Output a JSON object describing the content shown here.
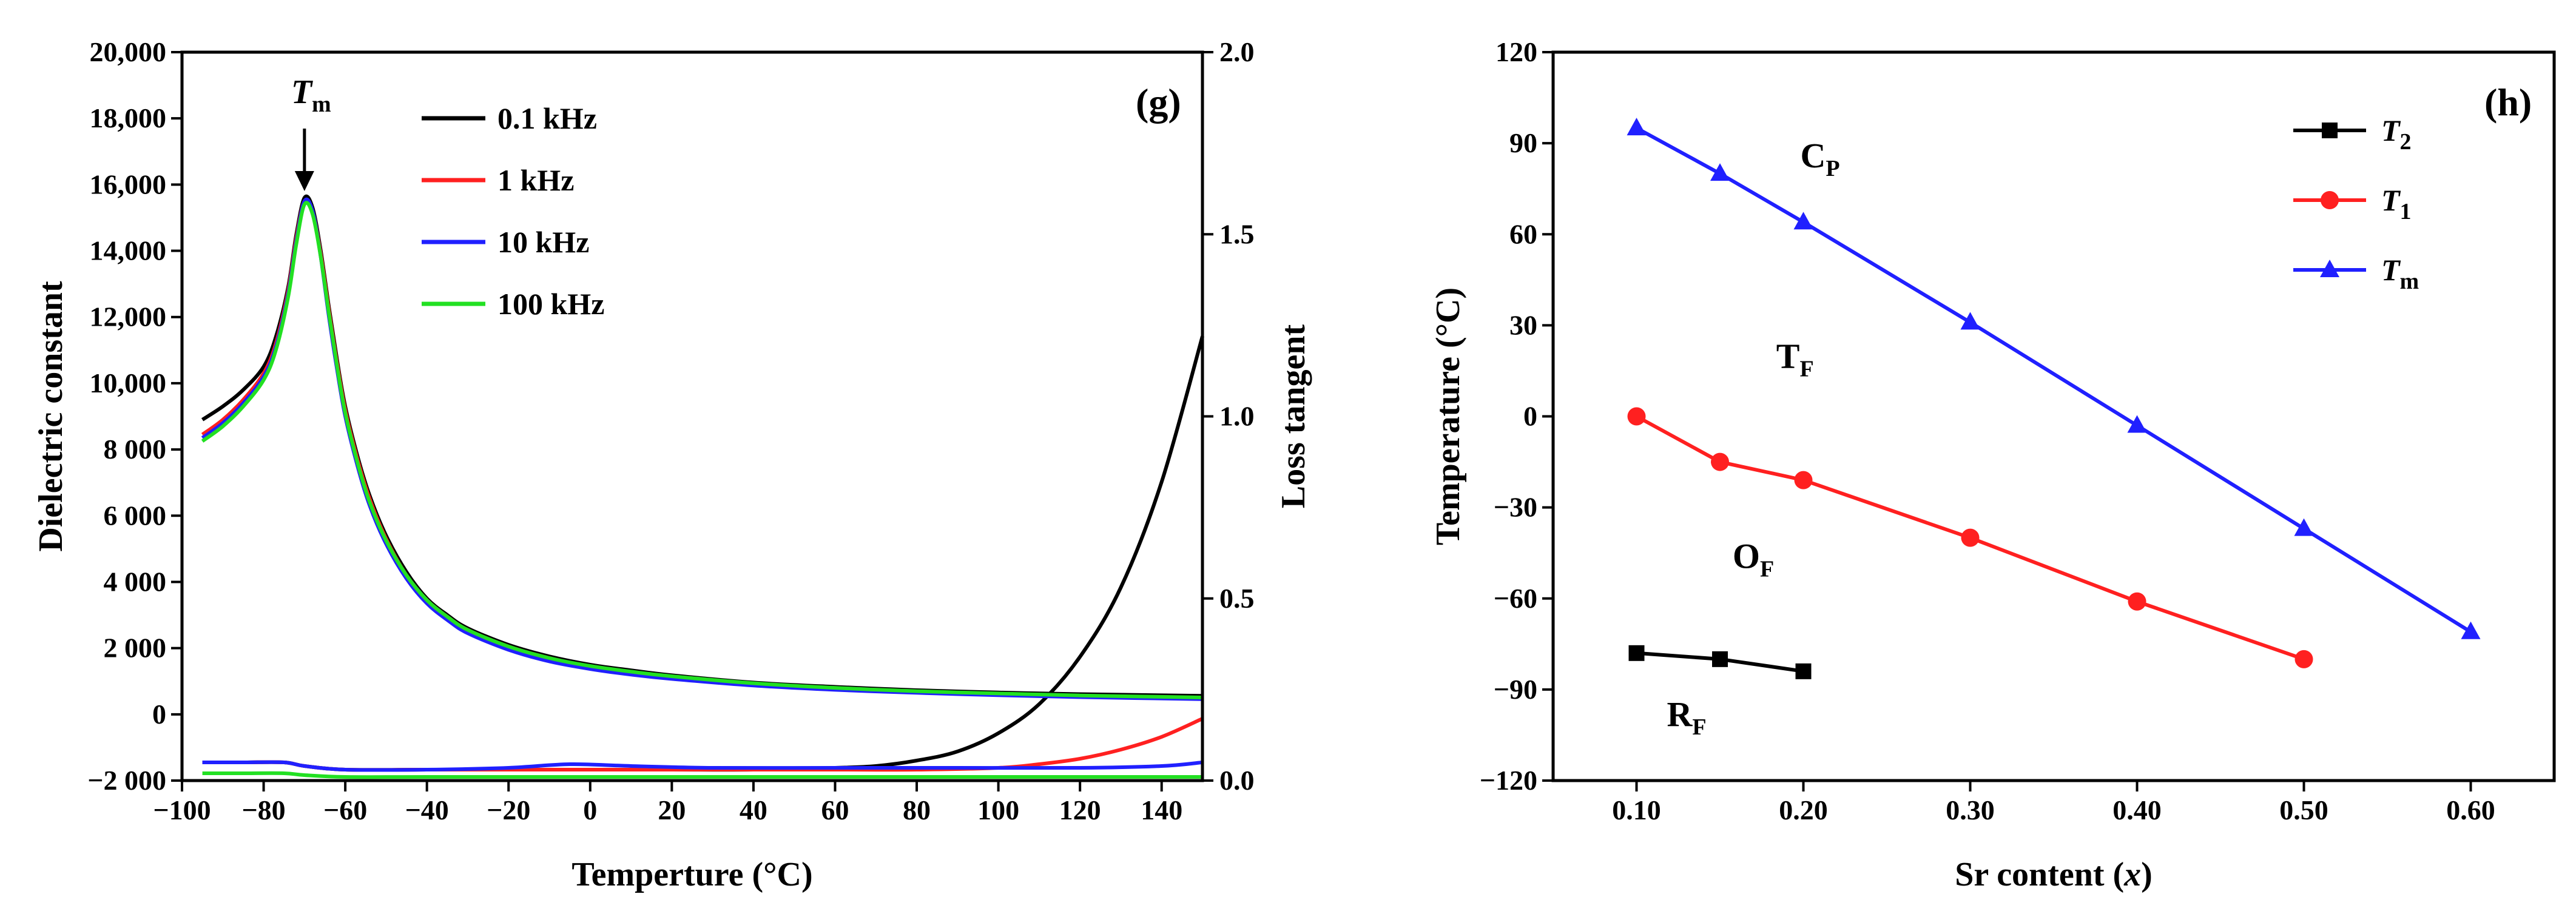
{
  "chart_data": [
    {
      "type": "line",
      "panel_label": "(g)",
      "xlabel": "Temperture (°C)",
      "ylabel": "Dielectric constant",
      "y2label": "Loss tangent",
      "xlim": [
        -100,
        150
      ],
      "ylim": [
        -2000,
        20000
      ],
      "y2lim": [
        0,
        2.0
      ],
      "x_ticks": [
        -100,
        -80,
        -60,
        -40,
        -20,
        0,
        20,
        40,
        60,
        80,
        100,
        120,
        140
      ],
      "x_tick_labels": [
        "−100",
        "−80",
        "−60",
        "−40",
        "−20",
        "0",
        "20",
        "40",
        "60",
        "80",
        "100",
        "120",
        "140"
      ],
      "y_ticks": [
        -2000,
        0,
        2000,
        4000,
        6000,
        8000,
        10000,
        12000,
        14000,
        16000,
        18000,
        20000
      ],
      "y_tick_labels": [
        "−2 000",
        "0",
        "2 000",
        "4 000",
        "6 000",
        "8 000",
        "10,000",
        "12,000",
        "14,000",
        "16,000",
        "18,000",
        "20,000"
      ],
      "y2_ticks": [
        0,
        0.5,
        1.0,
        1.5,
        2.0
      ],
      "y2_tick_labels": [
        "0.0",
        "0.5",
        "1.0",
        "1.5",
        "2.0"
      ],
      "annotation": {
        "text": "T",
        "sub": "m",
        "x": -70,
        "y": 15700
      },
      "legend": {
        "placement": "top-left-inside",
        "entries": [
          "0.1 kHz",
          "1 kHz",
          "10 kHz",
          "100 kHz"
        ]
      },
      "series": [
        {
          "name": "0.1 kHz",
          "color": "#000000",
          "permittivity": {
            "x": [
              -95,
              -90,
              -85,
              -80,
              -77,
              -74,
              -72,
              -70,
              -68,
              -66,
              -64,
              -62,
              -60,
              -57,
              -54,
              -50,
              -45,
              -40,
              -35,
              -30,
              -20,
              -10,
              0,
              10,
              20,
              40,
              60,
              80,
              100,
              120,
              150
            ],
            "y": [
              8900,
              9300,
              9800,
              10500,
              11400,
              12900,
              14500,
              15600,
              15300,
              14000,
              12300,
              10700,
              9300,
              7800,
              6600,
              5400,
              4300,
              3500,
              3000,
              2600,
              2100,
              1750,
              1500,
              1330,
              1180,
              960,
              830,
              730,
              660,
              610,
              560
            ]
          },
          "loss": {
            "x": [
              -95,
              -85,
              -75,
              -70,
              -60,
              -40,
              -20,
              0,
              20,
              40,
              60,
              70,
              80,
              90,
              100,
              110,
              120,
              130,
              140,
              150
            ],
            "y": [
              0.05,
              0.05,
              0.05,
              0.04,
              0.03,
              0.03,
              0.03,
              0.03,
              0.03,
              0.03,
              0.035,
              0.04,
              0.055,
              0.08,
              0.13,
              0.21,
              0.34,
              0.53,
              0.82,
              1.22
            ]
          }
        },
        {
          "name": "1 kHz",
          "color": "#ff2020",
          "permittivity": {
            "x": [
              -95,
              -90,
              -85,
              -80,
              -77,
              -74,
              -72,
              -70,
              -68,
              -66,
              -64,
              -62,
              -60,
              -57,
              -54,
              -50,
              -45,
              -40,
              -35,
              -30,
              -20,
              -10,
              0,
              10,
              20,
              40,
              60,
              80,
              100,
              120,
              150
            ],
            "y": [
              8450,
              8900,
              9500,
              10300,
              11200,
              12800,
              14400,
              15500,
              15200,
              13900,
              12200,
              10600,
              9200,
              7700,
              6500,
              5300,
              4200,
              3450,
              2950,
              2550,
              2050,
              1700,
              1450,
              1280,
              1140,
              920,
              790,
              690,
              620,
              560,
              500
            ]
          },
          "loss": {
            "x": [
              -95,
              -85,
              -75,
              -70,
              -60,
              -40,
              -20,
              0,
              20,
              40,
              60,
              80,
              100,
              110,
              120,
              130,
              140,
              150
            ],
            "y": [
              0.05,
              0.05,
              0.05,
              0.04,
              0.03,
              0.03,
              0.03,
              0.03,
              0.03,
              0.03,
              0.03,
              0.03,
              0.035,
              0.045,
              0.06,
              0.085,
              0.12,
              0.17
            ]
          }
        },
        {
          "name": "10 kHz",
          "color": "#2020ff",
          "permittivity": {
            "x": [
              -95,
              -90,
              -85,
              -80,
              -77,
              -74,
              -72,
              -70,
              -68,
              -66,
              -64,
              -62,
              -60,
              -57,
              -54,
              -50,
              -45,
              -40,
              -35,
              -30,
              -20,
              -10,
              0,
              10,
              20,
              40,
              60,
              80,
              100,
              120,
              150
            ],
            "y": [
              8350,
              8800,
              9400,
              10200,
              11100,
              12700,
              14300,
              15500,
              15200,
              13800,
              12000,
              10400,
              9000,
              7500,
              6300,
              5150,
              4100,
              3350,
              2850,
              2450,
              1950,
              1600,
              1370,
              1200,
              1070,
              870,
              740,
              650,
              580,
              520,
              460
            ]
          },
          "loss": {
            "x": [
              -95,
              -85,
              -75,
              -70,
              -60,
              -40,
              -20,
              -5,
              10,
              30,
              60,
              90,
              120,
              140,
              150
            ],
            "y": [
              0.05,
              0.05,
              0.05,
              0.04,
              0.03,
              0.03,
              0.035,
              0.045,
              0.04,
              0.035,
              0.035,
              0.035,
              0.035,
              0.04,
              0.05
            ]
          }
        },
        {
          "name": "100 kHz",
          "color": "#22e022",
          "permittivity": {
            "x": [
              -95,
              -90,
              -85,
              -80,
              -77,
              -74,
              -72,
              -70,
              -68,
              -66,
              -64,
              -62,
              -60,
              -57,
              -54,
              -50,
              -45,
              -40,
              -35,
              -30,
              -20,
              -10,
              0,
              10,
              20,
              40,
              60,
              80,
              100,
              120,
              150
            ],
            "y": [
              8250,
              8700,
              9300,
              10100,
              11000,
              12600,
              14200,
              15400,
              15100,
              13800,
              12100,
              10500,
              9100,
              7600,
              6400,
              5250,
              4200,
              3450,
              2950,
              2550,
              2050,
              1700,
              1460,
              1290,
              1150,
              940,
              800,
              700,
              630,
              570,
              510
            ]
          },
          "loss": {
            "x": [
              -95,
              -85,
              -75,
              -70,
              -60,
              -40,
              -20,
              0,
              20,
              40,
              60,
              80,
              100,
              120,
              150
            ],
            "y": [
              0.02,
              0.02,
              0.02,
              0.015,
              0.01,
              0.01,
              0.01,
              0.01,
              0.01,
              0.01,
              0.01,
              0.01,
              0.01,
              0.01,
              0.01
            ]
          }
        }
      ]
    },
    {
      "type": "line",
      "panel_label": "(h)",
      "xlabel_main": "Sr content (",
      "xlabel_var": "x",
      "xlabel_end": ")",
      "ylabel": "Temperature (°C)",
      "xlim": [
        0.05,
        0.65
      ],
      "ylim": [
        -120,
        120
      ],
      "x_ticks": [
        0.1,
        0.2,
        0.3,
        0.4,
        0.5,
        0.6
      ],
      "x_tick_labels": [
        "0.10",
        "0.20",
        "0.30",
        "0.40",
        "0.50",
        "0.60"
      ],
      "y_ticks": [
        -120,
        -90,
        -60,
        -30,
        0,
        30,
        60,
        90,
        120
      ],
      "y_tick_labels": [
        "−120",
        "−90",
        "−60",
        "−30",
        "0",
        "30",
        "60",
        "90",
        "120"
      ],
      "legend": {
        "placement": "top-right",
        "entries": [
          {
            "base": "T",
            "sub": "2"
          },
          {
            "base": "T",
            "sub": "1"
          },
          {
            "base": "T",
            "sub": "m"
          }
        ]
      },
      "regions": [
        {
          "base": "C",
          "sub": "P",
          "x": 0.21,
          "y": 82
        },
        {
          "base": "T",
          "sub": "F",
          "x": 0.195,
          "y": 16
        },
        {
          "base": "O",
          "sub": "F",
          "x": 0.17,
          "y": -50
        },
        {
          "base": "R",
          "sub": "F",
          "x": 0.13,
          "y": -102
        }
      ],
      "series": [
        {
          "name": "T2",
          "color": "#000000",
          "marker": "square",
          "x": [
            0.1,
            0.15,
            0.2
          ],
          "y": [
            -78,
            -80,
            -84
          ]
        },
        {
          "name": "T1",
          "color": "#ff2020",
          "marker": "circle",
          "x": [
            0.1,
            0.15,
            0.2,
            0.3,
            0.4,
            0.5
          ],
          "y": [
            0,
            -15,
            -21,
            -40,
            -61,
            -80
          ]
        },
        {
          "name": "Tm",
          "color": "#2020ff",
          "marker": "triangle",
          "x": [
            0.1,
            0.15,
            0.2,
            0.3,
            0.4,
            0.5,
            0.6
          ],
          "y": [
            95,
            80,
            64,
            31,
            -3,
            -37,
            -71
          ]
        }
      ]
    }
  ]
}
